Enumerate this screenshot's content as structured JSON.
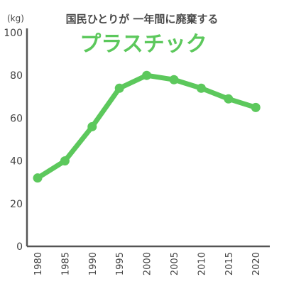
{
  "chart_data": {
    "type": "line",
    "title_line1": "国民ひとりが 一年間に廃棄する",
    "title_line2": "プラスチック",
    "unit_label": "(kg)",
    "x": [
      "1980",
      "1985",
      "1990",
      "1995",
      "2000",
      "2005",
      "2010",
      "2015",
      "2020"
    ],
    "y": [
      32,
      40,
      56,
      74,
      80,
      78,
      74,
      69,
      65
    ],
    "ylim": [
      0,
      100
    ],
    "yticks": [
      "0",
      "20",
      "40",
      "60",
      "80",
      "100"
    ],
    "grid": false,
    "line_color": "#5cc85c",
    "axis_color": "#555555"
  }
}
